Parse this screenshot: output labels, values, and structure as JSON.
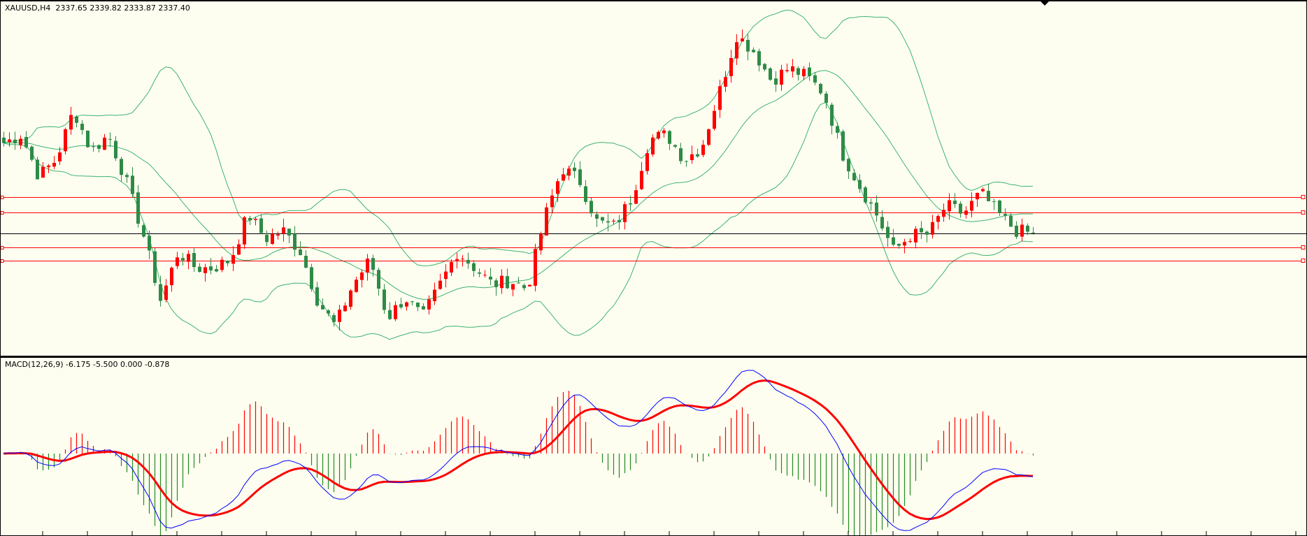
{
  "main_chart": {
    "symbol_label": "XAUUSD,H4",
    "ohlc_label": "2337.65 2339.82 2333.87 2337.40",
    "bid_price": 2337.4,
    "indicator": "Bollinger Bands",
    "price_path_closes": [
      2387.2,
      2391.7,
      2368.8,
      2378,
      2405.5,
      2382.6,
      2391.7,
      2366.5,
      2336.7,
      2300.1,
      2327.6,
      2318.4,
      2318.4,
      2323,
      2348.2,
      2334.4,
      2339,
      2327.6,
      2300.1,
      2286.3,
      2309.2,
      2323,
      2290.9,
      2302.3,
      2290.9,
      2309.2,
      2327.6,
      2318.4,
      2309.2,
      2311.5,
      2306.9,
      2345.9,
      2373.4,
      2366.5,
      2343.6,
      2341.3,
      2357.4,
      2389.4,
      2391.7,
      2378,
      2384.9,
      2414.7,
      2446.7,
      2437.6,
      2421.5,
      2428.4,
      2423.8,
      2414.7,
      2382.6,
      2364.4,
      2348.2,
      2327.6,
      2336.7,
      2336.7,
      2352.8,
      2348.2,
      2359.8,
      2348.2,
      2339,
      2337.4
    ],
    "horizontal_levels": [
      2357.4,
      2348.8,
      2329.8,
      2322.4
    ],
    "colors": {
      "bull": "#ff0000",
      "bear": "#2e8b46",
      "bands": "#3cb371",
      "levels": "#ff0000",
      "bid_line": "#000000",
      "background": "#fefef0"
    }
  },
  "macd_chart": {
    "label": "MACD(12,26,9) -6.175 -5.500 0.000 -0.878",
    "params": [
      12,
      26,
      9
    ],
    "colors": {
      "macd": "#0000ff",
      "signal": "#ff0000",
      "hist_pos": "#ff0000",
      "hist_neg": "#228b22"
    }
  }
}
